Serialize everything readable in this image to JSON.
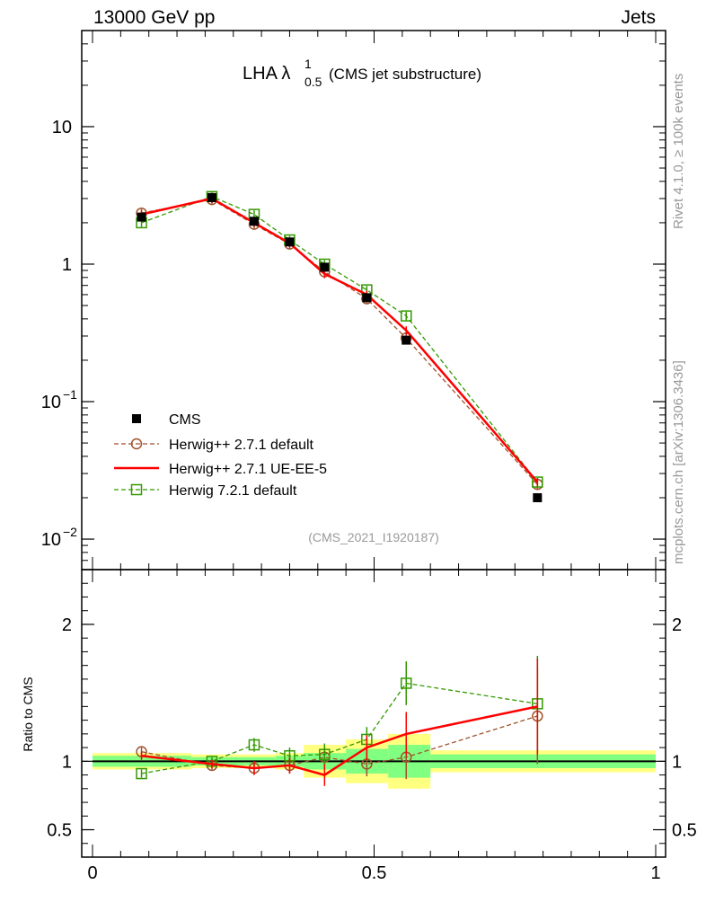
{
  "header": {
    "left": "13000 GeV pp",
    "right": "Jets"
  },
  "side_text": {
    "rivet": "Rivet 4.1.0, ≥ 100k events",
    "mcplots": "mcplots.cern.ch [arXiv:1306.3436]"
  },
  "plot": {
    "title_main": "LHA λ",
    "title_sup": "1",
    "title_sub": "0.5",
    "title_note": "(CMS jet substructure)",
    "analysis_id": "(CMS_2021_I1920187)"
  },
  "colors": {
    "cms": "#000000",
    "hpp_default": "#a0522d",
    "hpp_ueee5": "#ff0000",
    "h7_default": "#339900",
    "band_yellow": "#ffff80",
    "band_green": "#80ff80"
  },
  "chart_data": [
    {
      "type": "line",
      "panel": "main",
      "title": "LHA λ^1_0.5 (CMS jet substructure)",
      "xlabel": "",
      "ylabel": "",
      "yscale": "log",
      "xlim": [
        0,
        1
      ],
      "ylim": [
        0.006,
        50
      ],
      "y_ticks": [
        {
          "value": 0.01,
          "base": "10",
          "exp": "−2"
        },
        {
          "value": 0.1,
          "base": "10",
          "exp": "−1"
        },
        {
          "value": 1,
          "base": "1",
          "exp": ""
        },
        {
          "value": 10,
          "base": "10",
          "exp": ""
        }
      ],
      "x": [
        0.087,
        0.212,
        0.287,
        0.35,
        0.412,
        0.487,
        0.557,
        0.79
      ],
      "series": [
        {
          "name": "CMS",
          "key": "cms",
          "marker": "filled-square",
          "values": [
            2.2,
            3.05,
            2.05,
            1.45,
            0.95,
            0.57,
            0.28,
            0.02
          ]
        },
        {
          "name": "Herwig++ 2.7.1 default",
          "key": "hpp_default",
          "marker": "open-circle",
          "dashed": true,
          "values": [
            2.35,
            2.95,
            1.95,
            1.4,
            0.88,
            0.56,
            0.29,
            0.025
          ]
        },
        {
          "name": "Herwig++ 2.7.1 UE-EE-5",
          "key": "hpp_ueee5",
          "marker": "none",
          "dashed": false,
          "values": [
            2.3,
            3.0,
            2.0,
            1.42,
            0.85,
            0.6,
            0.33,
            0.026
          ]
        },
        {
          "name": "Herwig 7.2.1 default",
          "key": "h7_default",
          "marker": "open-square",
          "dashed": true,
          "values": [
            2.0,
            3.1,
            2.3,
            1.5,
            1.0,
            0.65,
            0.42,
            0.026
          ]
        }
      ],
      "legend": "middle-left"
    },
    {
      "type": "line",
      "panel": "ratio",
      "xlabel": "",
      "ylabel": "Ratio to CMS",
      "xlim": [
        0,
        1
      ],
      "ylim": [
        0.3,
        2.4
      ],
      "x_ticks": [
        "0",
        "0.5",
        "1"
      ],
      "y_ticks": [
        "0.5",
        "1",
        "2"
      ],
      "x": [
        0.087,
        0.212,
        0.287,
        0.35,
        0.412,
        0.487,
        0.557,
        0.79
      ],
      "series": [
        {
          "name": "Herwig++ 2.7.1 default",
          "key": "hpp_default",
          "values": [
            1.07,
            0.97,
            0.95,
            0.97,
            1.03,
            0.98,
            1.03,
            1.33
          ]
        },
        {
          "name": "Herwig++ 2.7.1 UE-EE-5",
          "key": "hpp_ueee5",
          "values": [
            1.04,
            0.98,
            0.95,
            0.97,
            0.9,
            1.1,
            1.2,
            1.4
          ]
        },
        {
          "name": "Herwig 7.2.1 default",
          "key": "h7_default",
          "values": [
            0.91,
            1.0,
            1.12,
            1.04,
            1.05,
            1.16,
            1.57,
            1.42
          ]
        }
      ],
      "cms_band": {
        "edges": [
          0,
          0.175,
          0.25,
          0.325,
          0.375,
          0.45,
          0.525,
          0.6,
          1.0
        ],
        "yellow": [
          0.06,
          0.05,
          0.05,
          0.06,
          0.12,
          0.16,
          0.2,
          0.08
        ],
        "green": [
          0.04,
          0.03,
          0.03,
          0.04,
          0.06,
          0.09,
          0.12,
          0.05
        ]
      }
    }
  ]
}
